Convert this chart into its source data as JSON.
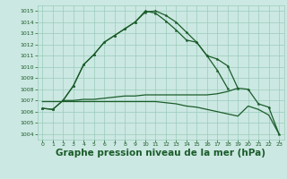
{
  "bg_color": "#cce8e2",
  "grid_color": "#99ccbb",
  "line_color": "#1a5c2a",
  "title": "Graphe pression niveau de la mer (hPa)",
  "title_fontsize": 7.5,
  "xlim": [
    -0.5,
    23.5
  ],
  "ylim": [
    1003.5,
    1015.5
  ],
  "yticks": [
    1004,
    1005,
    1006,
    1007,
    1008,
    1009,
    1010,
    1011,
    1012,
    1013,
    1014,
    1015
  ],
  "xticks": [
    0,
    1,
    2,
    3,
    4,
    5,
    6,
    7,
    8,
    9,
    10,
    11,
    12,
    13,
    14,
    15,
    16,
    17,
    18,
    19,
    20,
    21,
    22,
    23
  ],
  "series1_x": [
    0,
    1,
    2,
    3,
    4,
    5,
    6,
    7,
    8,
    9,
    10,
    11,
    12,
    13,
    14,
    15,
    16,
    17,
    18
  ],
  "series1_y": [
    1006.3,
    1006.2,
    1007.0,
    1008.3,
    1010.2,
    1011.1,
    1012.2,
    1012.8,
    1013.4,
    1014.0,
    1014.9,
    1015.0,
    1014.6,
    1014.0,
    1013.1,
    1012.2,
    1011.0,
    1009.7,
    1008.1
  ],
  "series2_x": [
    0,
    1,
    2,
    3,
    4,
    5,
    6,
    7,
    8,
    9,
    10,
    11,
    12,
    13,
    14,
    15,
    16,
    17,
    18,
    19,
    20,
    21,
    22,
    23
  ],
  "series2_y": [
    1006.3,
    1006.2,
    1007.0,
    1008.3,
    1010.2,
    1011.1,
    1012.2,
    1012.8,
    1013.4,
    1014.0,
    1015.0,
    1014.8,
    1014.1,
    1013.3,
    1012.4,
    1012.2,
    1011.0,
    1010.7,
    1010.1,
    1008.1,
    1008.0,
    1006.7,
    1006.4,
    1004.0
  ],
  "series3_x": [
    2,
    3,
    4,
    5,
    6,
    7,
    8,
    9,
    10,
    11,
    12,
    13,
    14,
    15,
    16,
    17,
    18,
    19
  ],
  "series3_y": [
    1007.0,
    1007.0,
    1007.1,
    1007.1,
    1007.2,
    1007.3,
    1007.4,
    1007.4,
    1007.5,
    1007.5,
    1007.5,
    1007.5,
    1007.5,
    1007.5,
    1007.5,
    1007.6,
    1007.8,
    1008.1
  ],
  "series4_x": [
    0,
    1,
    2,
    3,
    4,
    5,
    6,
    7,
    8,
    9,
    10,
    11,
    12,
    13,
    14,
    15,
    16,
    17,
    18,
    19,
    20,
    21,
    22,
    23
  ],
  "series4_y": [
    1006.9,
    1006.9,
    1006.9,
    1006.9,
    1006.9,
    1006.9,
    1006.9,
    1006.9,
    1006.9,
    1006.9,
    1006.9,
    1006.9,
    1006.8,
    1006.7,
    1006.5,
    1006.4,
    1006.2,
    1006.0,
    1005.8,
    1005.6,
    1006.5,
    1006.2,
    1005.7,
    1004.0
  ]
}
